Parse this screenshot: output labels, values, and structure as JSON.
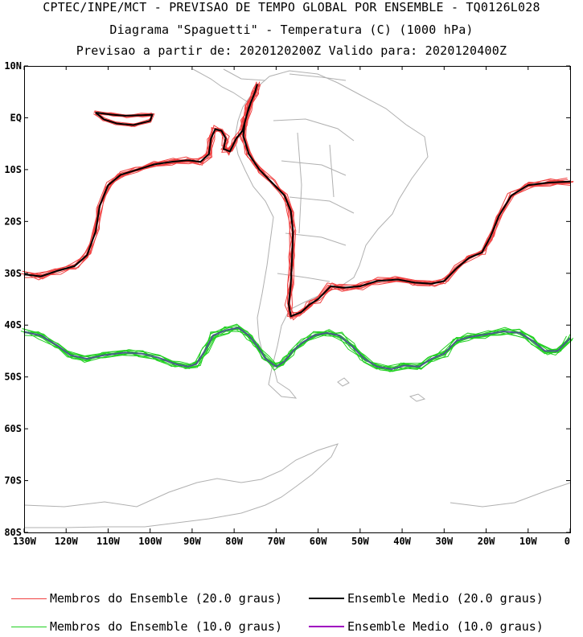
{
  "header": {
    "line1": "CPTEC/INPE/MCT - PREVISAO DE TEMPO GLOBAL POR ENSEMBLE - TQ0126L028",
    "line2": "Diagrama \"Spaguetti\" - Temperatura (C) (1000 hPa)",
    "line3": "Previsao a partir de: 2020120200Z  Valido para: 2020120400Z"
  },
  "axes": {
    "lat_labels": [
      "10N",
      "EQ",
      "10S",
      "20S",
      "30S",
      "40S",
      "50S",
      "60S",
      "70S",
      "80S"
    ],
    "lat_values": [
      10,
      0,
      -10,
      -20,
      -30,
      -40,
      -50,
      -60,
      -70,
      -80
    ],
    "lon_labels": [
      "130W",
      "120W",
      "110W",
      "100W",
      "90W",
      "80W",
      "70W",
      "60W",
      "50W",
      "40W",
      "30W",
      "20W",
      "10W",
      "0"
    ],
    "lon_values": [
      -130,
      -120,
      -110,
      -100,
      -90,
      -80,
      -70,
      -60,
      -50,
      -40,
      -30,
      -20,
      -10,
      0
    ],
    "lon_range": [
      -130,
      0
    ],
    "lat_range": [
      -80,
      10
    ]
  },
  "colors": {
    "member_20": "#f04040",
    "mean_20": "#000000",
    "member_10": "#20d020",
    "mean_10": "#a000c0",
    "coast": "#b0b0b0"
  },
  "legend": [
    {
      "label": "Membros do Ensemble (20.0 graus)",
      "color": "#f04040"
    },
    {
      "label": "Ensemble Medio (20.0 graus)",
      "color": "#000000"
    },
    {
      "label": "Membros do Ensemble (10.0 graus)",
      "color": "#20d020"
    },
    {
      "label": "Ensemble Medio (10.0 graus)",
      "color": "#a000c0"
    }
  ],
  "contours": {
    "iso20_main": [
      [
        -130,
        -30.2
      ],
      [
        -126,
        -30.6
      ],
      [
        -122,
        -29.5
      ],
      [
        -118,
        -28.6
      ],
      [
        -115,
        -26.5
      ],
      [
        -113,
        -22
      ],
      [
        -112,
        -17
      ],
      [
        -110,
        -13
      ],
      [
        -107,
        -11
      ],
      [
        -103,
        -10
      ],
      [
        -99,
        -9
      ],
      [
        -95,
        -8.5
      ],
      [
        -91,
        -8.2
      ],
      [
        -88,
        -8.5
      ],
      [
        -86,
        -7
      ],
      [
        -85.5,
        -4
      ],
      [
        -84.5,
        -2.2
      ],
      [
        -83,
        -2.5
      ],
      [
        -82,
        -4
      ],
      [
        -82.5,
        -6
      ],
      [
        -81,
        -6.5
      ],
      [
        -79.5,
        -4
      ],
      [
        -78,
        -2.5
      ],
      [
        -77,
        0.5
      ],
      [
        -76,
        3
      ],
      [
        -75,
        5
      ],
      [
        -74.5,
        6.5
      ],
      [
        -75,
        5
      ],
      [
        -76.5,
        2
      ],
      [
        -77.5,
        -1
      ],
      [
        -77.8,
        -3.5
      ],
      [
        -76.5,
        -7
      ],
      [
        -74,
        -10
      ],
      [
        -71,
        -12.5
      ],
      [
        -68,
        -15
      ],
      [
        -66.5,
        -18
      ],
      [
        -66,
        -22
      ],
      [
        -66.2,
        -27
      ],
      [
        -66.5,
        -32
      ],
      [
        -67,
        -36
      ],
      [
        -66.5,
        -38.3
      ],
      [
        -64,
        -37.5
      ],
      [
        -62,
        -36
      ],
      [
        -60,
        -35
      ],
      [
        -57,
        -32.5
      ],
      [
        -54,
        -32.8
      ],
      [
        -50,
        -32.5
      ],
      [
        -46,
        -31.5
      ],
      [
        -41,
        -31.2
      ],
      [
        -37,
        -31.8
      ],
      [
        -33,
        -32
      ],
      [
        -30,
        -31.5
      ],
      [
        -27,
        -29
      ],
      [
        -24,
        -27
      ],
      [
        -21,
        -26
      ],
      [
        -19,
        -23
      ],
      [
        -17,
        -19
      ],
      [
        -14,
        -15
      ],
      [
        -10,
        -13
      ],
      [
        -5,
        -12.5
      ],
      [
        0,
        -12.3
      ]
    ],
    "iso20_island": [
      [
        -113,
        1
      ],
      [
        -109,
        0.6
      ],
      [
        -106,
        0.4
      ],
      [
        -102,
        0.5
      ],
      [
        -99.5,
        0.6
      ],
      [
        -100,
        -0.6
      ],
      [
        -104,
        -1.4
      ],
      [
        -108,
        -1.1
      ],
      [
        -111,
        -0.3
      ],
      [
        -113,
        1
      ]
    ],
    "iso10_main": [
      [
        -130,
        -41.3
      ],
      [
        -126,
        -42
      ],
      [
        -122,
        -44
      ],
      [
        -119,
        -45.8
      ],
      [
        -115,
        -46.5
      ],
      [
        -111,
        -45.8
      ],
      [
        -106,
        -45.3
      ],
      [
        -102,
        -45.5
      ],
      [
        -98,
        -46.3
      ],
      [
        -94,
        -47.5
      ],
      [
        -91,
        -48
      ],
      [
        -89,
        -47.5
      ],
      [
        -87,
        -45
      ],
      [
        -85,
        -42
      ],
      [
        -82,
        -41
      ],
      [
        -79,
        -40.5
      ],
      [
        -76.5,
        -42
      ],
      [
        -74.5,
        -44
      ],
      [
        -72.5,
        -46.5
      ],
      [
        -70,
        -48
      ],
      [
        -68,
        -47
      ],
      [
        -66,
        -45
      ],
      [
        -64,
        -43.5
      ],
      [
        -61,
        -42
      ],
      [
        -58,
        -41.5
      ],
      [
        -55,
        -42
      ],
      [
        -52,
        -44
      ],
      [
        -49,
        -46.5
      ],
      [
        -46,
        -48
      ],
      [
        -42.5,
        -48.5
      ],
      [
        -39.5,
        -47.8
      ],
      [
        -36,
        -48
      ],
      [
        -33,
        -46.5
      ],
      [
        -30,
        -45.5
      ],
      [
        -27,
        -43
      ],
      [
        -24,
        -42.3
      ],
      [
        -20,
        -41.8
      ],
      [
        -16,
        -41.2
      ],
      [
        -12,
        -41.5
      ],
      [
        -9,
        -43
      ],
      [
        -6,
        -45
      ],
      [
        -3,
        -45
      ],
      [
        0,
        -42.5
      ]
    ]
  }
}
